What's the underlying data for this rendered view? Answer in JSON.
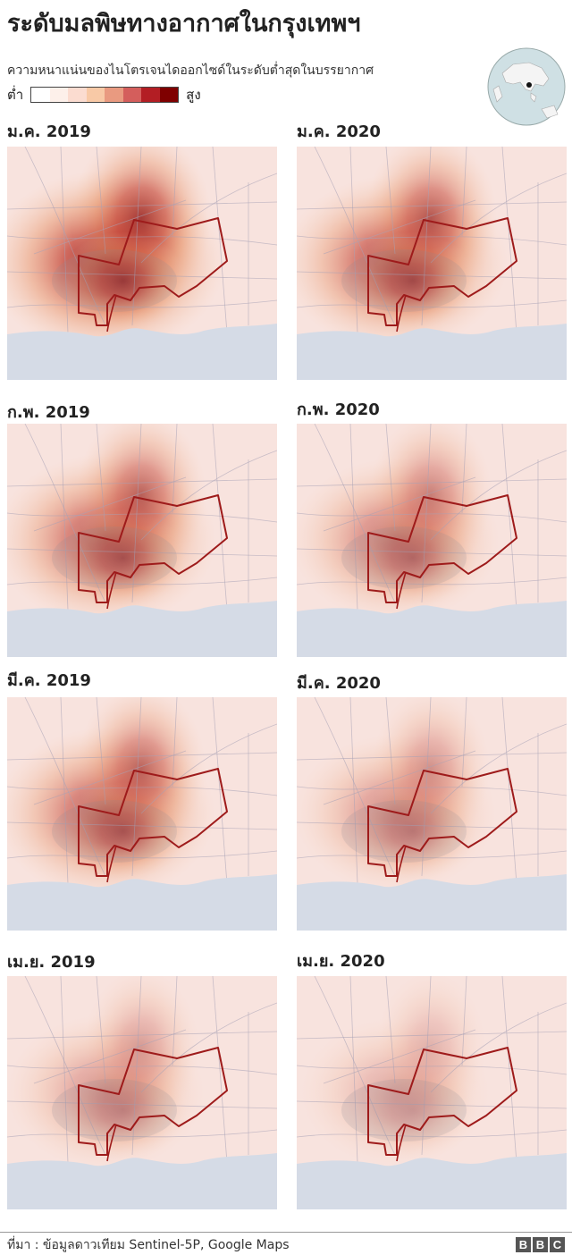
{
  "title": "ระดับมลพิษทางอากาศในกรุงเทพฯ",
  "subtitle": "ความหนาแน่นของไนโตรเจนไดออกไซด์ในระดับต่ำสุดในบรรยากาศ",
  "legend": {
    "low_label": "ต่ำ",
    "high_label": "สูง",
    "colors": [
      "#ffffff",
      "#fdf0ea",
      "#fbdcd0",
      "#f8c9a6",
      "#e99a80",
      "#d45e5c",
      "#b31e24",
      "#7f0000"
    ]
  },
  "locator_globe": {
    "icon": "globe-icon",
    "highlight": "Bangkok"
  },
  "panels": [
    {
      "label": "ม.ค. 2019",
      "month": "Jan",
      "year": 2019,
      "no2_intensity": 0.95
    },
    {
      "label": "ม.ค. 2020",
      "month": "Jan",
      "year": 2020,
      "no2_intensity": 0.78
    },
    {
      "label": "ก.พ. 2019",
      "month": "Feb",
      "year": 2019,
      "no2_intensity": 0.72
    },
    {
      "label": "ก.พ. 2020",
      "month": "Feb",
      "year": 2020,
      "no2_intensity": 0.55
    },
    {
      "label": "มี.ค. 2019",
      "month": "Mar",
      "year": 2019,
      "no2_intensity": 0.7
    },
    {
      "label": "มี.ค. 2020",
      "month": "Mar",
      "year": 2020,
      "no2_intensity": 0.45
    },
    {
      "label": "เม.ย. 2019",
      "month": "Apr",
      "year": 2019,
      "no2_intensity": 0.4
    },
    {
      "label": "เม.ย. 2020",
      "month": "Apr",
      "year": 2020,
      "no2_intensity": 0.28
    }
  ],
  "colors": {
    "land": "#f8e3de",
    "water": "#d5dbe6",
    "boundary": "#9e1b1b",
    "roads": "#a8a2b6"
  },
  "footer": {
    "source": "ที่มา : ข้อมูลดาวเทียม Sentinel-5P, Google Maps",
    "logo_letters": [
      "B",
      "B",
      "C"
    ]
  }
}
